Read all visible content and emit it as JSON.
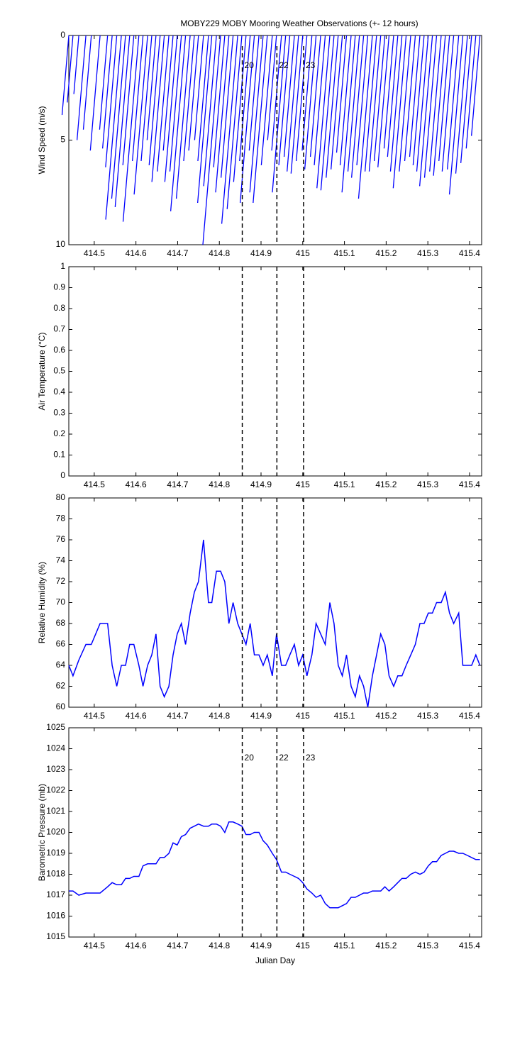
{
  "chart_data": [
    {
      "type": "stick",
      "title": "MOBY229 MOBY Mooring Weather Observations (+- 12 hours)",
      "ylabel": "Wind Speed (m/s)",
      "xlim": [
        414.439,
        415.429
      ],
      "xticks": [
        414.5,
        414.6,
        414.7,
        414.8,
        414.9,
        415,
        415.1,
        415.2,
        415.3,
        415.4
      ],
      "ylim": [
        0,
        10
      ],
      "yticks": [
        0,
        5,
        10
      ],
      "y_reversed": true,
      "vlines": [
        414.855,
        414.938,
        415.002
      ],
      "vline_labels": [
        "20",
        "22",
        "23"
      ],
      "vline_label_color": "#cc2222",
      "x": [
        414.439,
        414.449,
        414.463,
        414.48,
        414.493,
        414.514,
        414.532,
        414.543,
        414.554,
        414.565,
        414.575,
        414.585,
        414.595,
        414.607,
        414.617,
        414.628,
        414.638,
        414.648,
        414.658,
        414.668,
        414.679,
        414.689,
        414.699,
        414.709,
        414.719,
        414.73,
        414.74,
        414.75,
        414.762,
        414.774,
        414.782,
        414.793,
        414.803,
        414.813,
        414.823,
        414.833,
        414.844,
        414.854,
        414.864,
        414.874,
        414.884,
        414.895,
        414.905,
        414.915,
        414.927,
        414.937,
        414.949,
        414.959,
        414.969,
        414.98,
        414.99,
        415.0,
        415.01,
        415.022,
        415.032,
        415.043,
        415.054,
        415.065,
        415.075,
        415.085,
        415.095,
        415.105,
        415.116,
        415.126,
        415.136,
        415.146,
        415.156,
        415.167,
        415.177,
        415.187,
        415.197,
        415.207,
        415.218,
        415.228,
        415.238,
        415.248,
        415.259,
        415.27,
        415.281,
        415.291,
        415.301,
        415.311,
        415.321,
        415.332,
        415.342,
        415.352,
        415.362,
        415.374,
        415.384,
        415.395,
        415.405,
        415.415,
        415.425
      ],
      "series": [
        {
          "color": "#0000ff",
          "values": [
            3.8,
            3.2,
            2.8,
            5,
            4.5,
            5.5,
            4.5,
            5.4,
            6.3,
            8.8,
            7.8,
            8.2,
            6.2,
            8.9,
            6,
            7.6,
            6,
            5,
            6.2,
            7,
            6.5,
            5.5,
            7,
            6.5,
            8.4,
            7.8,
            6,
            5.5,
            5,
            6,
            8,
            7.2,
            10,
            6.3,
            7.5,
            6.8,
            9,
            8.3,
            7,
            6,
            8,
            5.5,
            7.5,
            8,
            6.2,
            5,
            5.5,
            7.5,
            6.2,
            5.8,
            6.5,
            6.6,
            6,
            5.5,
            6.4,
            5.8,
            6.2,
            7.3,
            7.4,
            6.8,
            6.4,
            5.6,
            6.2,
            7.5,
            6.5,
            6.8,
            6.2,
            7.8,
            6.5,
            6.5,
            6,
            6.3,
            5.4,
            5.8,
            6.5,
            7.3,
            6.5,
            6,
            5.8,
            6.2,
            6.5,
            7.2,
            6.8,
            6.5,
            6.7,
            6,
            6.5,
            6.4,
            7.6,
            6.6,
            6.1,
            5.4,
            4.8
          ]
        }
      ]
    },
    {
      "type": "line",
      "ylabel": "Air Temperature (°C)",
      "xlim": [
        414.439,
        415.429
      ],
      "xticks": [
        414.5,
        414.6,
        414.7,
        414.8,
        414.9,
        415,
        415.1,
        415.2,
        415.3,
        415.4
      ],
      "ylim": [
        0,
        1
      ],
      "yticks": [
        0,
        0.1,
        0.2,
        0.3,
        0.4,
        0.5,
        0.6,
        0.7,
        0.8,
        0.9,
        1
      ],
      "vlines": [
        414.855,
        414.938,
        415.002
      ],
      "series": []
    },
    {
      "type": "line",
      "ylabel": "Relative Humidity (%)",
      "xlim": [
        414.439,
        415.429
      ],
      "xticks": [
        414.5,
        414.6,
        414.7,
        414.8,
        414.9,
        415,
        415.1,
        415.2,
        415.3,
        415.4
      ],
      "ylim": [
        60,
        80
      ],
      "yticks": [
        60,
        62,
        64,
        66,
        68,
        70,
        72,
        74,
        76,
        78,
        80
      ],
      "vlines": [
        414.855,
        414.938,
        415.002
      ],
      "x": [
        414.439,
        414.449,
        414.463,
        414.48,
        414.493,
        414.514,
        414.532,
        414.543,
        414.554,
        414.565,
        414.575,
        414.585,
        414.595,
        414.607,
        414.617,
        414.628,
        414.638,
        414.648,
        414.658,
        414.668,
        414.679,
        414.689,
        414.699,
        414.709,
        414.719,
        414.73,
        414.74,
        414.75,
        414.762,
        414.774,
        414.782,
        414.793,
        414.803,
        414.813,
        414.823,
        414.833,
        414.844,
        414.854,
        414.864,
        414.874,
        414.884,
        414.895,
        414.905,
        414.915,
        414.927,
        414.937,
        414.949,
        414.959,
        414.969,
        414.98,
        414.99,
        415.0,
        415.01,
        415.022,
        415.032,
        415.043,
        415.054,
        415.065,
        415.075,
        415.085,
        415.095,
        415.105,
        415.116,
        415.126,
        415.136,
        415.146,
        415.156,
        415.167,
        415.177,
        415.187,
        415.197,
        415.207,
        415.218,
        415.228,
        415.238,
        415.248,
        415.259,
        415.27,
        415.281,
        415.291,
        415.301,
        415.311,
        415.321,
        415.332,
        415.342,
        415.352,
        415.362,
        415.374,
        415.384,
        415.395,
        415.405,
        415.415,
        415.425
      ],
      "series": [
        {
          "color": "#0000ff",
          "values": [
            64,
            63,
            64.5,
            66,
            66,
            68,
            68,
            64,
            62,
            64,
            64,
            66,
            66,
            64,
            62,
            64,
            65,
            67,
            62,
            61,
            62,
            65,
            67,
            68,
            66,
            69,
            71,
            72,
            76,
            70,
            70,
            73,
            73,
            72,
            68,
            70,
            68,
            67,
            66,
            68,
            65,
            65,
            64,
            65,
            63,
            67,
            64,
            64,
            65,
            66,
            64,
            65,
            63,
            65,
            68,
            67,
            66,
            70,
            68,
            64,
            63,
            65,
            62,
            61,
            63,
            62,
            60,
            63,
            65,
            67,
            66,
            63,
            62,
            63,
            63,
            64,
            65,
            66,
            68,
            68,
            69,
            69,
            70,
            70,
            71,
            69,
            68,
            69,
            64,
            64,
            64,
            65,
            64
          ]
        }
      ]
    },
    {
      "type": "line",
      "ylabel": "Barometric Pressure (mb)",
      "xlabel": "Julian Day",
      "xlim": [
        414.439,
        415.429
      ],
      "xticks": [
        414.5,
        414.6,
        414.7,
        414.8,
        414.9,
        415,
        415.1,
        415.2,
        415.3,
        415.4
      ],
      "ylim": [
        1015,
        1025
      ],
      "yticks": [
        1015,
        1016,
        1017,
        1018,
        1019,
        1020,
        1021,
        1022,
        1023,
        1024,
        1025
      ],
      "vlines": [
        414.855,
        414.938,
        415.002
      ],
      "vline_labels": [
        "20",
        "22",
        "23"
      ],
      "vline_label_color": "#cc2222",
      "x": [
        414.439,
        414.449,
        414.463,
        414.48,
        414.493,
        414.514,
        414.532,
        414.543,
        414.554,
        414.565,
        414.575,
        414.585,
        414.595,
        414.607,
        414.617,
        414.628,
        414.638,
        414.648,
        414.658,
        414.668,
        414.679,
        414.689,
        414.699,
        414.709,
        414.719,
        414.73,
        414.74,
        414.75,
        414.762,
        414.774,
        414.782,
        414.793,
        414.803,
        414.813,
        414.823,
        414.833,
        414.844,
        414.854,
        414.864,
        414.874,
        414.884,
        414.895,
        414.905,
        414.915,
        414.927,
        414.937,
        414.949,
        414.959,
        414.969,
        414.98,
        414.99,
        415.0,
        415.01,
        415.022,
        415.032,
        415.043,
        415.054,
        415.065,
        415.075,
        415.085,
        415.095,
        415.105,
        415.116,
        415.126,
        415.136,
        415.146,
        415.156,
        415.167,
        415.177,
        415.187,
        415.197,
        415.207,
        415.218,
        415.228,
        415.238,
        415.248,
        415.259,
        415.27,
        415.281,
        415.291,
        415.301,
        415.311,
        415.321,
        415.332,
        415.342,
        415.352,
        415.362,
        415.374,
        415.384,
        415.395,
        415.405,
        415.415,
        415.425
      ],
      "series": [
        {
          "color": "#0000ff",
          "values": [
            1017.2,
            1017.2,
            1017.0,
            1017.1,
            1017.1,
            1017.1,
            1017.4,
            1017.6,
            1017.5,
            1017.5,
            1017.8,
            1017.8,
            1017.9,
            1017.9,
            1018.4,
            1018.5,
            1018.5,
            1018.5,
            1018.8,
            1018.8,
            1019.0,
            1019.5,
            1019.4,
            1019.8,
            1019.9,
            1020.2,
            1020.3,
            1020.4,
            1020.3,
            1020.3,
            1020.4,
            1020.4,
            1020.3,
            1020.0,
            1020.5,
            1020.5,
            1020.4,
            1020.3,
            1019.9,
            1019.9,
            1020.0,
            1020.0,
            1019.6,
            1019.4,
            1019.0,
            1018.7,
            1018.1,
            1018.1,
            1018.0,
            1017.9,
            1017.8,
            1017.6,
            1017.3,
            1017.1,
            1016.9,
            1017.0,
            1016.6,
            1016.4,
            1016.4,
            1016.4,
            1016.5,
            1016.6,
            1016.9,
            1016.9,
            1017.0,
            1017.1,
            1017.1,
            1017.2,
            1017.2,
            1017.2,
            1017.4,
            1017.2,
            1017.4,
            1017.6,
            1017.8,
            1017.8,
            1018.0,
            1018.1,
            1018.0,
            1018.1,
            1018.4,
            1018.6,
            1018.6,
            1018.9,
            1019.0,
            1019.1,
            1019.1,
            1019.0,
            1019.0,
            1018.9,
            1018.8,
            1018.7,
            1018.7
          ]
        }
      ]
    }
  ]
}
